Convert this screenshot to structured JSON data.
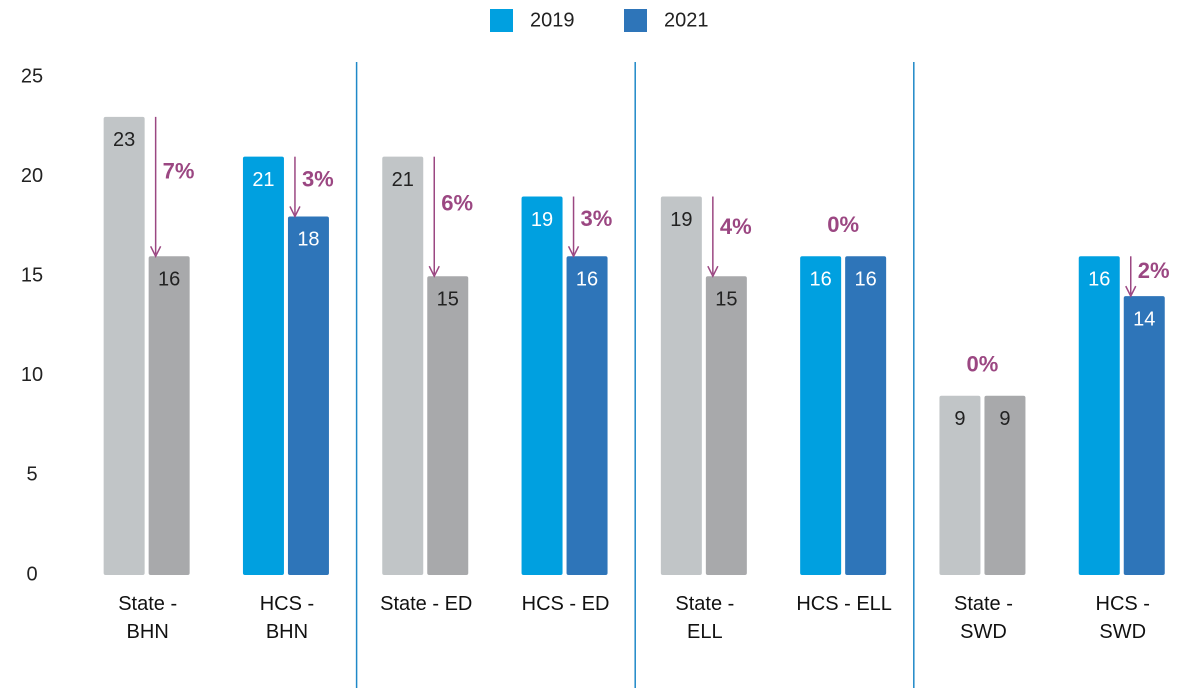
{
  "chart_data": {
    "type": "bar",
    "categories": [
      "State -\nBHN",
      "HCS -\nBHN",
      "State - ED",
      "HCS - ED",
      "State -\nELL",
      "HCS - ELL",
      "State -\nSWD",
      "HCS -\nSWD"
    ],
    "series": [
      {
        "name": "2019",
        "color": "#00a0e0",
        "colors": [
          "#c1c5c7",
          "#00a0e0",
          "#c1c5c7",
          "#00a0e0",
          "#c1c5c7",
          "#00a0e0",
          "#c1c5c7",
          "#00a0e0"
        ],
        "values": [
          23,
          21,
          21,
          19,
          19,
          16,
          9,
          16
        ]
      },
      {
        "name": "2021",
        "color": "#2e75b9",
        "colors": [
          "#a8a9ab",
          "#2e75b9",
          "#a8a9ab",
          "#2e75b9",
          "#a8a9ab",
          "#2e75b9",
          "#a8a9ab",
          "#2e75b9"
        ],
        "values": [
          16,
          18,
          15,
          16,
          15,
          16,
          9,
          14
        ]
      }
    ],
    "annotations": [
      "7%",
      "3%",
      "6%",
      "3%",
      "4%",
      "0%",
      "0%",
      "2%"
    ],
    "annotation_color": "#9b4782",
    "ylim": [
      0,
      25
    ],
    "yticks": [
      0,
      5,
      10,
      15,
      20,
      25
    ],
    "grid": false,
    "legend": "top"
  }
}
